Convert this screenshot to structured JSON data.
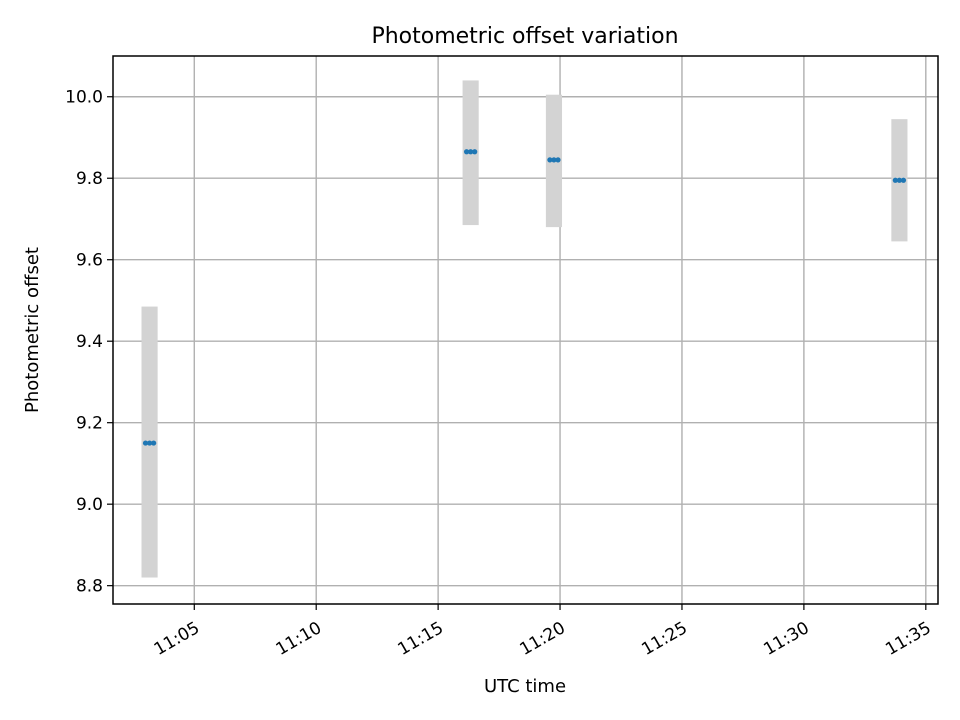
{
  "chart_data": {
    "type": "scatter",
    "title": "Photometric offset variation",
    "xlabel": "UTC time",
    "ylabel": "Photometric offset",
    "xlim": [
      "11:01:40",
      "11:35:30"
    ],
    "ylim": [
      8.755,
      10.1
    ],
    "x_ticks": [
      "11:05",
      "11:10",
      "11:15",
      "11:20",
      "11:25",
      "11:30",
      "11:35"
    ],
    "y_ticks": [
      "8.8",
      "9.0",
      "9.2",
      "9.4",
      "9.6",
      "9.8",
      "10.0"
    ],
    "grid": true,
    "x_tick_rotation_deg": 30,
    "colors": {
      "points": "#1f77b4",
      "errorbars": "#d3d3d3",
      "grid": "#b0b0b0"
    },
    "series": [
      {
        "groups": [
          {
            "times": [
              "11:03:00",
              "11:03:10",
              "11:03:20"
            ],
            "value": 9.15,
            "err_low": 8.82,
            "err_high": 9.485
          },
          {
            "times": [
              "11:16:10",
              "11:16:20",
              "11:16:30"
            ],
            "value": 9.865,
            "err_low": 9.685,
            "err_high": 10.04
          },
          {
            "times": [
              "11:19:35",
              "11:19:45",
              "11:19:55"
            ],
            "value": 9.845,
            "err_low": 9.68,
            "err_high": 10.005
          },
          {
            "times": [
              "11:33:45",
              "11:33:55",
              "11:34:05"
            ],
            "value": 9.795,
            "err_low": 9.645,
            "err_high": 9.945
          }
        ]
      }
    ]
  }
}
